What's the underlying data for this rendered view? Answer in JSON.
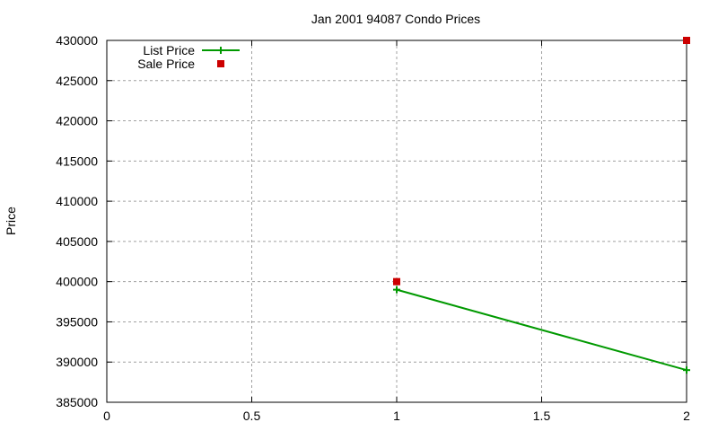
{
  "chart_data": {
    "type": "line",
    "title": "Jan 2001 94087 Condo Prices",
    "xlabel": "",
    "ylabel": "Price",
    "xlim": [
      0,
      2
    ],
    "ylim": [
      385000,
      430000
    ],
    "x_ticks": [
      "0",
      "0.5",
      "1",
      "1.5",
      "2"
    ],
    "y_ticks": [
      "385000",
      "390000",
      "395000",
      "400000",
      "405000",
      "410000",
      "415000",
      "420000",
      "425000",
      "430000"
    ],
    "grid": true,
    "legend_position": "top-left",
    "series": [
      {
        "name": "List Price",
        "style": "linespoints",
        "marker": "plus",
        "color": "#009900",
        "x": [
          1,
          2
        ],
        "y": [
          399000,
          389000
        ]
      },
      {
        "name": "Sale Price",
        "style": "points",
        "marker": "square",
        "color": "#cc0000",
        "x": [
          1,
          2
        ],
        "y": [
          400000,
          430000
        ]
      }
    ]
  }
}
